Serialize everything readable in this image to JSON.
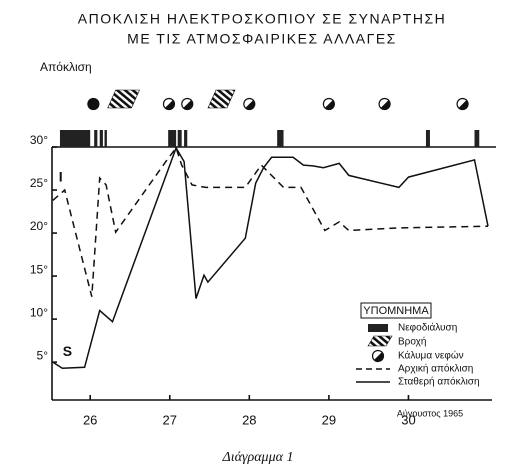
{
  "chart_data": {
    "type": "line",
    "title": "ΑΠΟΚΛΙΣΗ ΗΛΕΚΤΡΟΣΚΟΠΙΟΥ ΣΕ ΣΥΝΑΡΤΗΣΗ",
    "subtitle": "ΜΕ ΤΙΣ ΑΤΜΟΣΦΑΙΡΙΚΕΣ ΑΛΛΑΓΕΣ",
    "y_label": "Απόκλιση",
    "x_note": "Αύγουστος 1965",
    "caption": "Διάγραμμα 1",
    "legend_title": "ΥΠΟΜΝΗΜΑ",
    "xlim": [
      25.52,
      31.05
    ],
    "ylim": [
      0.6,
      30
    ],
    "xticks": [
      26,
      27,
      28,
      29,
      30
    ],
    "yticks": [
      {
        "value": 5,
        "label": "5°"
      },
      {
        "value": 10,
        "label": "10°"
      },
      {
        "value": 15,
        "label": "15°"
      },
      {
        "value": 20,
        "label": "20°"
      },
      {
        "value": 25,
        "label": "25°"
      },
      {
        "value": 30,
        "label": "30°"
      }
    ],
    "series": [
      {
        "name": "Αρχική απόκλιση",
        "label": "I",
        "color": "#111",
        "dashed": true,
        "x": [
          25.53,
          25.68,
          26.02,
          26.12,
          26.2,
          26.32,
          26.95,
          27.08,
          27.15,
          27.28,
          27.45,
          27.95,
          28.15,
          28.43,
          28.65,
          28.95,
          29.13,
          29.25,
          29.88,
          31.0
        ],
        "values": [
          23.8,
          25.0,
          12.6,
          26.4,
          25.6,
          20.1,
          28.3,
          29.9,
          27.9,
          25.6,
          25.3,
          25.3,
          27.9,
          25.3,
          25.3,
          20.3,
          21.3,
          20.3,
          20.6,
          20.8
        ]
      },
      {
        "name": "Σταθερή απόκλιση",
        "label": "S",
        "color": "#111",
        "dashed": false,
        "x": [
          25.53,
          25.65,
          25.93,
          26.12,
          26.28,
          27.08,
          27.18,
          27.33,
          27.43,
          27.48,
          27.95,
          28.08,
          28.18,
          28.28,
          28.55,
          28.68,
          28.8,
          28.93,
          29.13,
          29.25,
          29.88,
          30.0,
          30.83,
          31.0
        ],
        "values": [
          5.0,
          4.3,
          4.4,
          11.0,
          9.7,
          29.9,
          28.3,
          12.4,
          15.1,
          14.3,
          19.4,
          25.8,
          27.6,
          28.8,
          28.8,
          27.9,
          27.8,
          27.6,
          28.1,
          26.7,
          25.3,
          26.5,
          28.5,
          20.8
        ]
      }
    ],
    "weather": {
      "cloudiness": {
        "name": "Νεφοδιάλυση",
        "intervals": [
          [
            25.62,
            26.0
          ],
          [
            26.05,
            26.09
          ],
          [
            26.12,
            26.16
          ],
          [
            26.18,
            26.21
          ],
          [
            26.98,
            27.08
          ],
          [
            27.1,
            27.15
          ],
          [
            27.18,
            27.22
          ],
          [
            28.35,
            28.43
          ],
          [
            30.22,
            30.27
          ],
          [
            30.83,
            30.89
          ]
        ]
      },
      "rain": {
        "name": "Βροχή",
        "intervals": [
          [
            26.22,
            26.62
          ],
          [
            27.48,
            27.82
          ]
        ]
      },
      "cloud_cover": {
        "name": "Κάλυμα νεφών",
        "x": [
          26.04,
          26.99,
          27.22,
          28.0,
          29.0,
          29.7,
          30.68
        ],
        "full": [
          true,
          false,
          false,
          false,
          false,
          false,
          false
        ]
      }
    }
  }
}
